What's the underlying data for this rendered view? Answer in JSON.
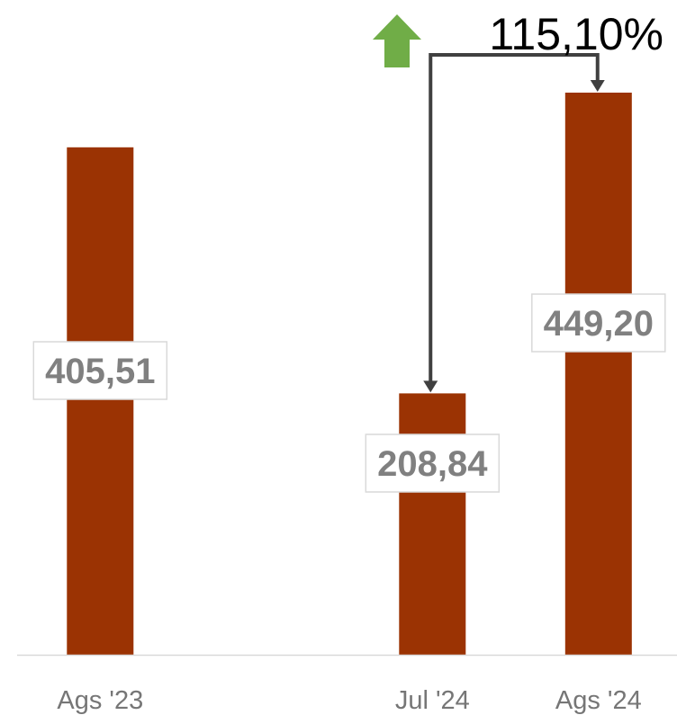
{
  "chart_data": {
    "type": "bar",
    "categories": [
      "Ags '23",
      "",
      "Jul '24",
      "Ags '24"
    ],
    "values": [
      405.51,
      null,
      208.84,
      449.2
    ],
    "data_labels": [
      "405,51",
      "",
      "208,84",
      "449,20"
    ],
    "ylim": [
      0,
      449.2
    ],
    "grid": false,
    "legend": "none",
    "annotation": {
      "from_category": "Jul '24",
      "to_category": "Ags '24",
      "text": "115,10%",
      "direction": "up"
    }
  },
  "colors": {
    "bar": "#9B3303",
    "label_text": "#808080",
    "label_border": "#D9D9D9",
    "axis_line": "#D9D9D9",
    "tick_text": "#767676",
    "connector": "#404040",
    "up_arrow": "#70AD47"
  },
  "icons": {
    "trend": "up-arrow-icon"
  }
}
